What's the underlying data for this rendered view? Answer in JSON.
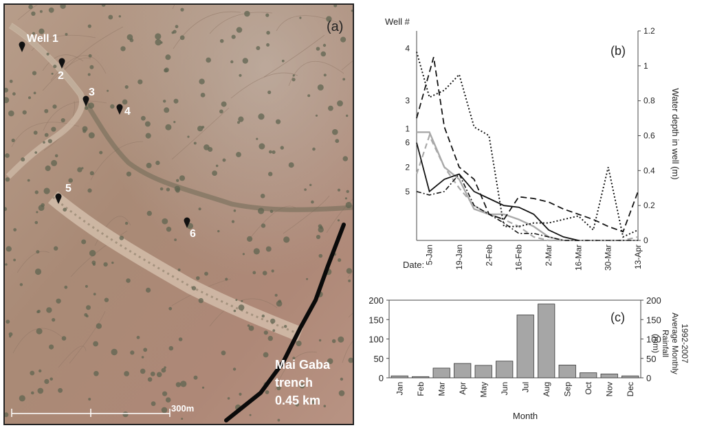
{
  "map": {
    "panel_label": "(a)",
    "wells": [
      {
        "label": "Well 1"
      },
      {
        "label": "2"
      },
      {
        "label": "3"
      },
      {
        "label": "4"
      },
      {
        "label": "5"
      },
      {
        "label": "6"
      }
    ],
    "trench_label_1": "Mai Gaba",
    "trench_label_2": "trench",
    "trench_label_3": "0.45 km",
    "scale_label": "300m"
  },
  "chart_data": [
    {
      "type": "line",
      "panel_label": "(b)",
      "left_axis_title": "Well #",
      "ylabel": "Water depth in well (m)",
      "xlabel": "Date:",
      "ylim": [
        0,
        1.2
      ],
      "yticks": [
        0,
        0.2,
        0.4,
        0.6,
        0.8,
        1,
        1.2
      ],
      "x_ticks": [
        "5-Jan",
        "19-Jan",
        "2-Feb",
        "16-Feb",
        "2-Mar",
        "16-Mar",
        "30-Mar",
        "13-Apr"
      ],
      "x_tick_days": [
        5,
        19,
        33,
        47,
        61,
        75,
        89,
        103
      ],
      "xlim_days": [
        -1,
        103
      ],
      "series": [
        {
          "name": "1",
          "style": "solid-gray",
          "x": [
            -1,
            5,
            12,
            19,
            26,
            33,
            40,
            47,
            54,
            61,
            68
          ],
          "y": [
            0.62,
            0.62,
            0.42,
            0.35,
            0.18,
            0.15,
            0.15,
            0.12,
            0.08,
            0.02,
            0
          ]
        },
        {
          "name": "2",
          "style": "dashed-gray",
          "x": [
            -1,
            5,
            12,
            19,
            26,
            33,
            40,
            47,
            54,
            61,
            68,
            75,
            89,
            96,
            103
          ],
          "y": [
            0.38,
            0.6,
            0.42,
            0.3,
            0.2,
            0.15,
            0.12,
            0.08,
            0.02,
            0,
            0,
            0,
            0,
            0,
            0.02
          ]
        },
        {
          "name": "3",
          "style": "dashed-black",
          "x": [
            -1,
            7,
            12,
            19,
            26,
            33,
            40,
            47,
            54,
            61,
            68,
            75,
            82,
            89,
            96,
            103
          ],
          "y": [
            0.7,
            1.05,
            0.65,
            0.42,
            0.35,
            0.15,
            0.12,
            0.25,
            0.24,
            0.22,
            0.18,
            0.15,
            0.12,
            0.08,
            0.05,
            0.28
          ]
        },
        {
          "name": "4",
          "style": "dotted-black",
          "x": [
            -1,
            5,
            12,
            19,
            26,
            33,
            40,
            47,
            54,
            61,
            68,
            75,
            82,
            89,
            96,
            103
          ],
          "y": [
            1.08,
            0.82,
            0.86,
            0.95,
            0.65,
            0.6,
            0.08,
            0.08,
            0.1,
            0.1,
            0.12,
            0.14,
            0.06,
            0.42,
            0.02,
            0.06
          ]
        },
        {
          "name": "5",
          "style": "dashdot-black",
          "x": [
            -1,
            5,
            12,
            19,
            26,
            33,
            40,
            47,
            54,
            61,
            68,
            75,
            89,
            103
          ],
          "y": [
            0.28,
            0.26,
            0.28,
            0.38,
            0.2,
            0.15,
            0.1,
            0.04,
            0.04,
            0.02,
            0,
            0,
            0,
            0
          ]
        },
        {
          "name": "6",
          "style": "solid-black",
          "x": [
            -1,
            5,
            12,
            19,
            26,
            33,
            40,
            47,
            54,
            61,
            68,
            75
          ],
          "y": [
            0.56,
            0.28,
            0.35,
            0.38,
            0.28,
            0.24,
            0.2,
            0.19,
            0.15,
            0.06,
            0.02,
            0
          ]
        }
      ],
      "well_labels_left": [
        {
          "label": "4",
          "y": 1.1
        },
        {
          "label": "3",
          "y": 0.8
        },
        {
          "label": "1",
          "y": 0.64
        },
        {
          "label": "6",
          "y": 0.56
        },
        {
          "label": "2",
          "y": 0.42
        },
        {
          "label": "5",
          "y": 0.28
        }
      ],
      "colors": {
        "gray": "#a9a9a9",
        "black": "#111111"
      }
    },
    {
      "type": "bar",
      "panel_label": "(c)",
      "categories": [
        "Jan",
        "Feb",
        "Mar",
        "Apr",
        "May",
        "Jun",
        "Jul",
        "Aug",
        "Sep",
        "Oct",
        "Nov",
        "Dec"
      ],
      "values": [
        5,
        3,
        25,
        37,
        32,
        43,
        162,
        190,
        33,
        13,
        10,
        5
      ],
      "xlabel": "Month",
      "ylabel_lines": [
        "1992-2007",
        "Average Monthly",
        "Rainfall",
        "(mm)"
      ],
      "ylim": [
        0,
        200
      ],
      "yticks": [
        0,
        50,
        100,
        150,
        200
      ],
      "bar_color": "#a6a6a6"
    }
  ]
}
